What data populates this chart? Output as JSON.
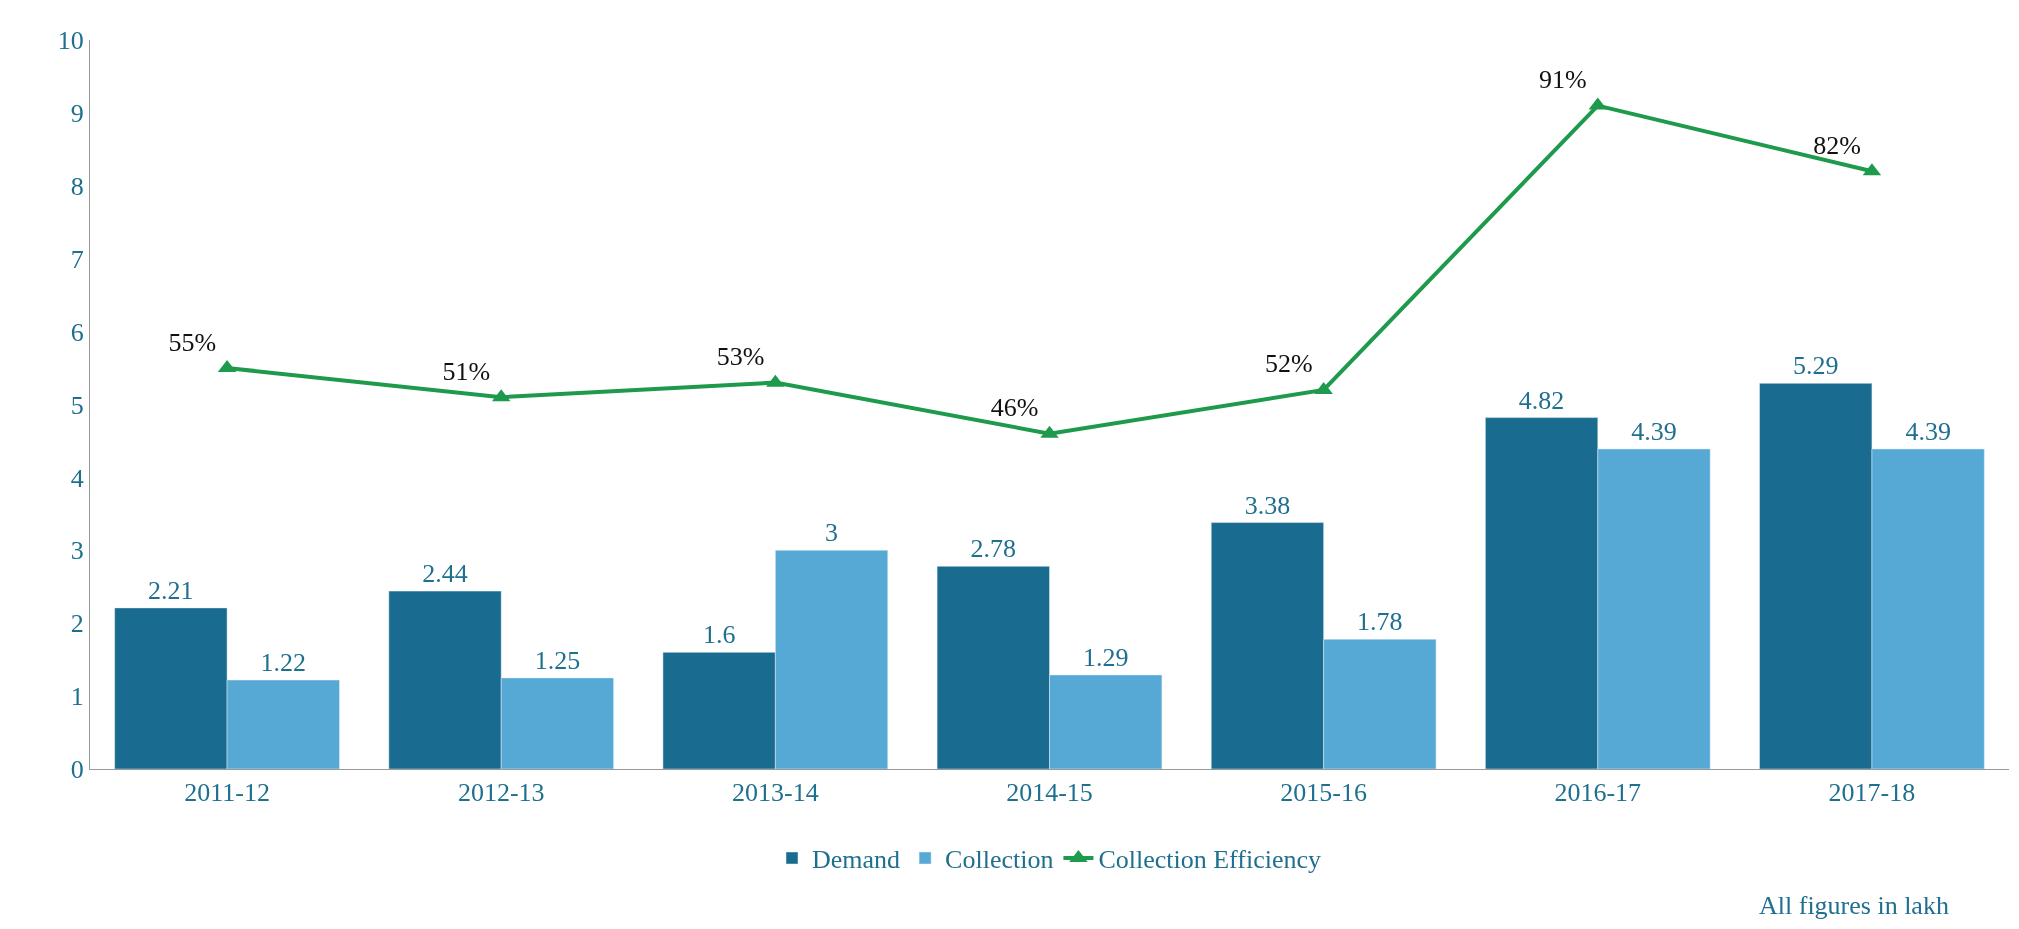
{
  "chart_data": {
    "type": "bar",
    "categories": [
      "2011-12",
      "2012-13",
      "2013-14",
      "2014-15",
      "2015-16",
      "2016-17",
      "2017-18"
    ],
    "series": [
      {
        "name": "Demand",
        "color": "#196b8f",
        "values": [
          2.21,
          2.44,
          1.6,
          2.78,
          3.38,
          4.82,
          5.29
        ],
        "data_labels": true
      },
      {
        "name": "Collection",
        "color": "#56a9d5",
        "values": [
          1.22,
          1.25,
          3,
          1.29,
          1.78,
          4.39,
          4.39
        ],
        "data_labels": true
      },
      {
        "name": "Collection Efficiency",
        "type": "line",
        "axis": "y2",
        "color": "#1e9a4c",
        "marker": "triangle",
        "values": [
          55,
          51,
          53,
          46,
          52,
          91,
          82
        ],
        "value_labels": [
          "55%",
          "51%",
          "53%",
          "46%",
          "52%",
          "91%",
          "82%"
        ]
      }
    ],
    "ylim": [
      0,
      10
    ],
    "yticks": [
      0,
      1,
      2,
      3,
      4,
      5,
      6,
      7,
      8,
      9,
      10
    ],
    "y2lim": [
      0,
      100
    ],
    "legend": "bottom",
    "annotations": [
      "All figures in lakh"
    ]
  }
}
